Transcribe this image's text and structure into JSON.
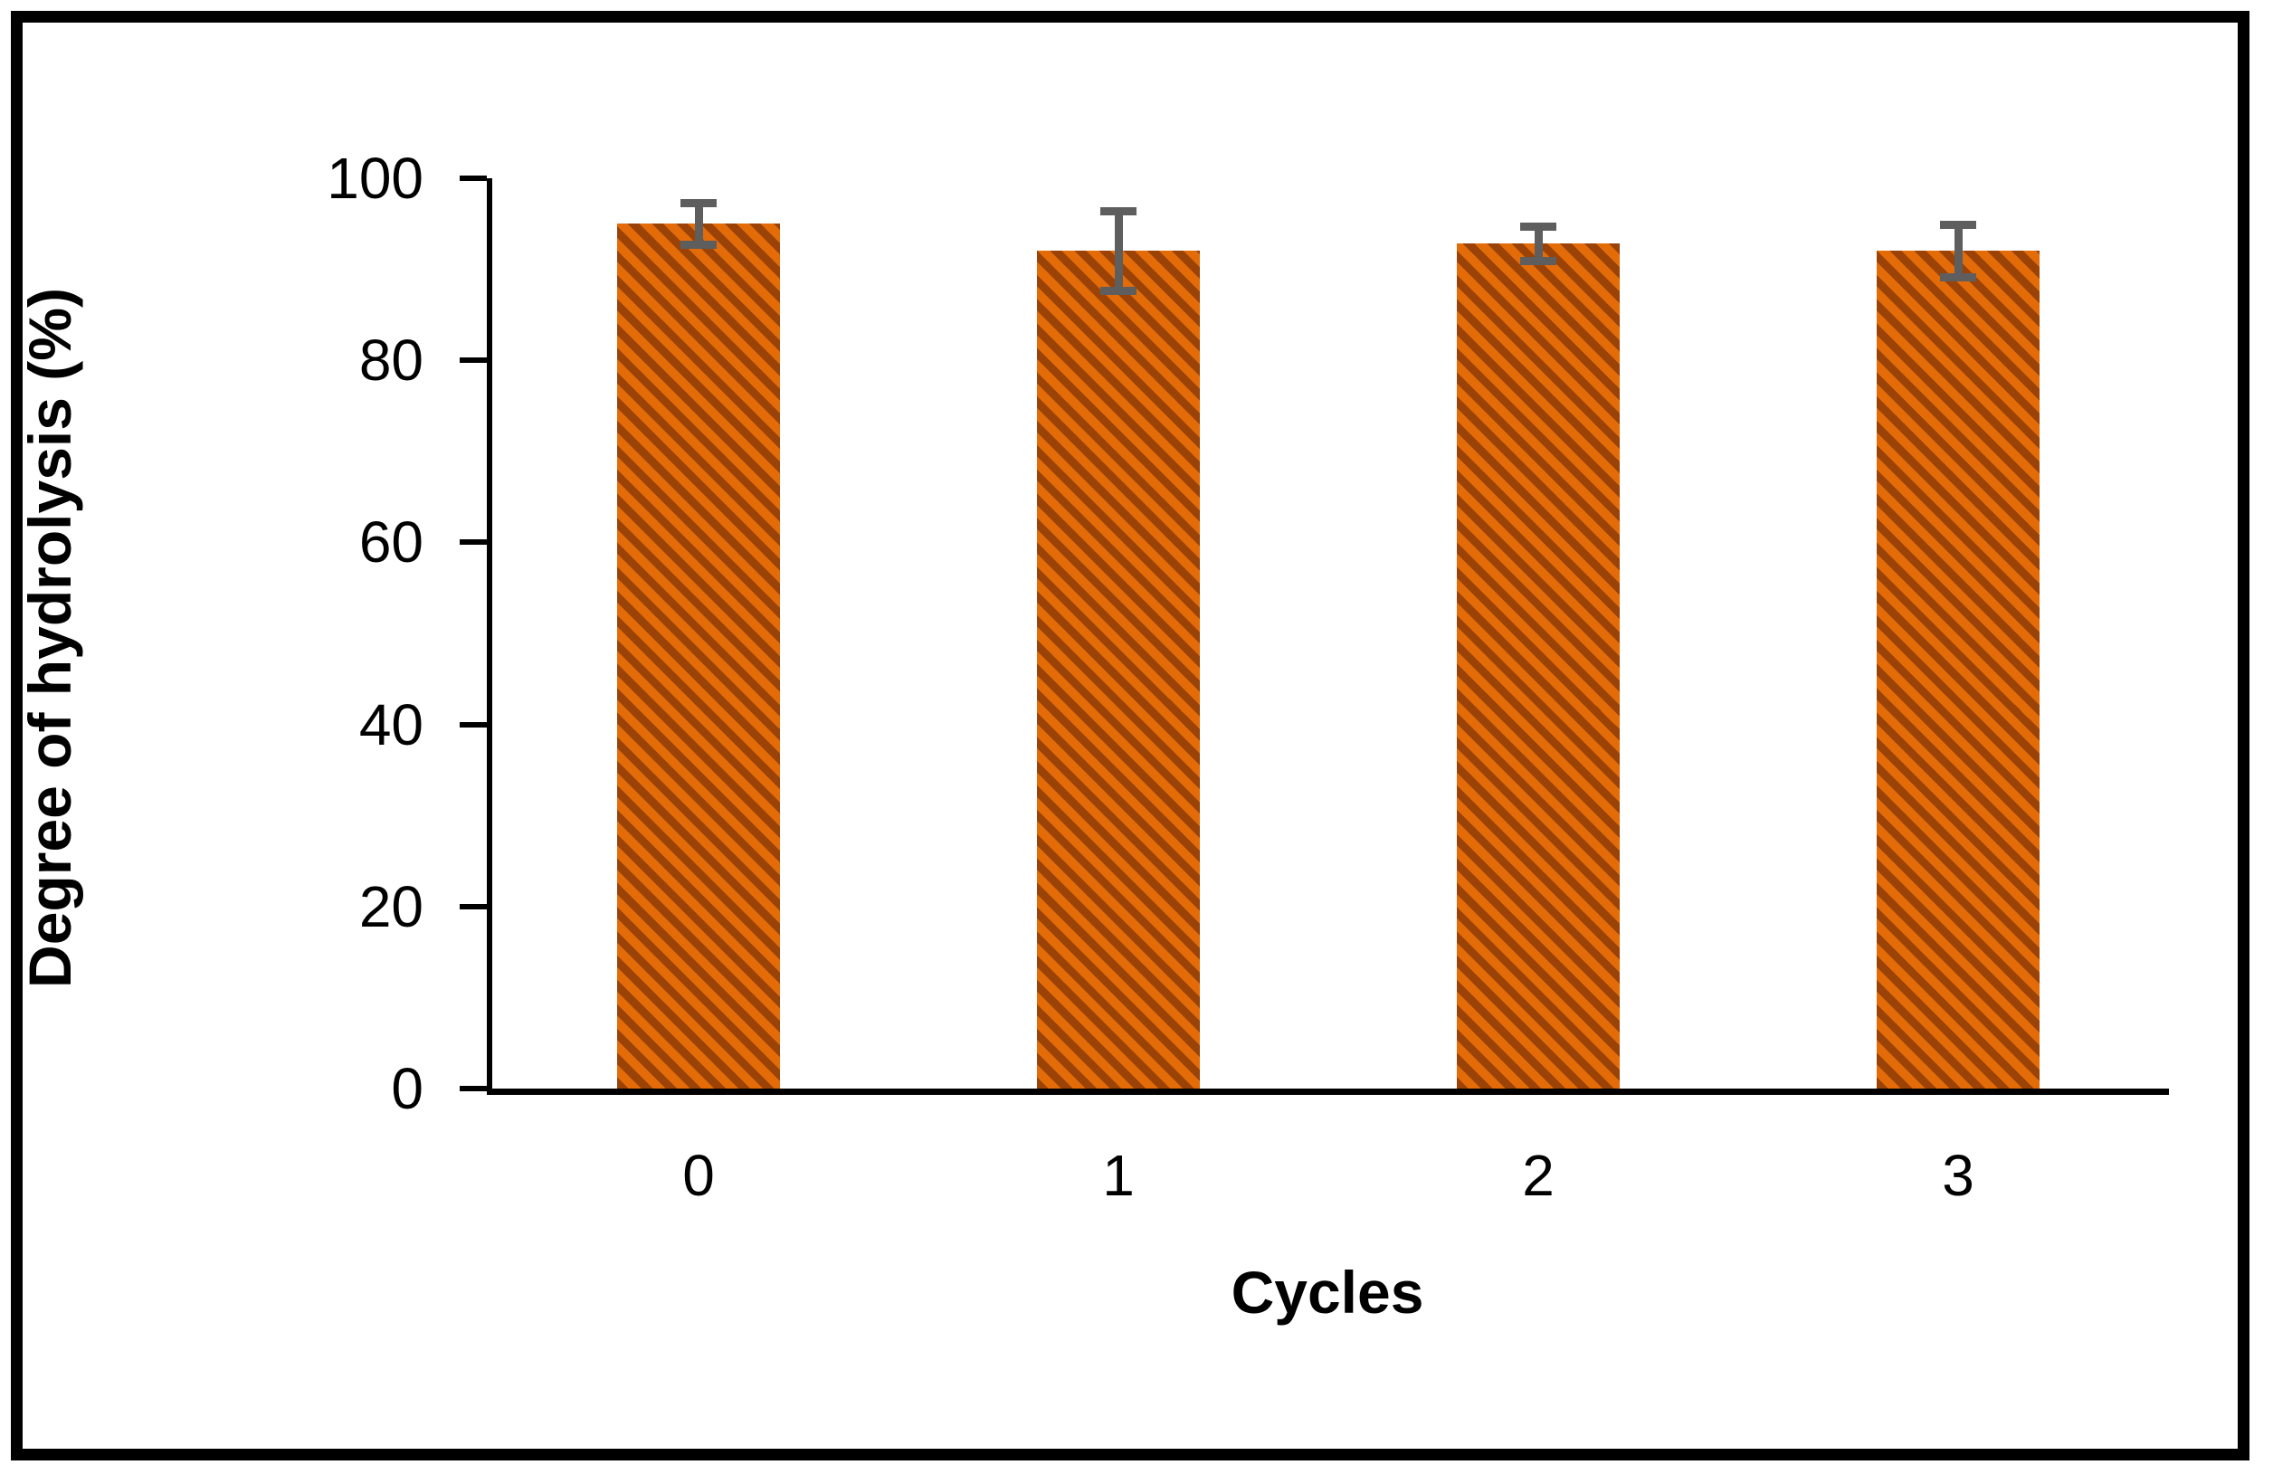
{
  "figure": {
    "background_color": "#ffffff",
    "frame_color": "#000000"
  },
  "chart_data": {
    "type": "bar",
    "title": "",
    "categories": [
      "0",
      "1",
      "2",
      "3"
    ],
    "values": [
      95.0,
      92.0,
      92.8,
      92.0
    ],
    "error_bars": [
      2.3,
      4.4,
      1.9,
      2.9
    ],
    "xlabel": "Cycles",
    "ylabel": "Degree of hydrolysis (%)",
    "ylim": [
      0,
      100
    ],
    "ytick_interval": 20,
    "ytick_labels": [
      "0",
      "20",
      "40",
      "60",
      "80",
      "100"
    ],
    "grid": false,
    "legend": false,
    "bar_fill_color": "#E36C09",
    "bar_hatch_color": "#9B4206",
    "bar_hatch_style": "downward-diagonal-stripes",
    "error_bar_color": "#5E5E5E",
    "axis_color": "#000000"
  }
}
